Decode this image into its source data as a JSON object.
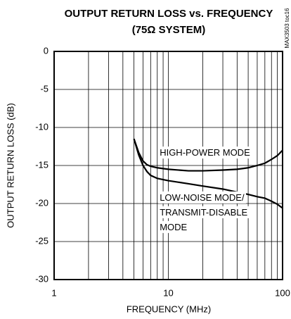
{
  "chart_data": {
    "type": "line",
    "title": [
      "OUTPUT RETURN LOSS vs. FREQUENCY",
      "(75Ω SYSTEM)"
    ],
    "side_label": "MAX3503 toc16",
    "xlabel": "FREQUENCY (MHz)",
    "ylabel": "OUTPUT RETURN LOSS (dB)",
    "xscale": "log",
    "xlim": [
      1,
      100
    ],
    "xticks": [
      1,
      10,
      100
    ],
    "ylim": [
      -30,
      0
    ],
    "yticks": [
      -30,
      -25,
      -20,
      -15,
      -10,
      -5,
      0
    ],
    "grid": true,
    "x": [
      5,
      5.5,
      6,
      6.5,
      7,
      8,
      10,
      15,
      20,
      30,
      40,
      50,
      60,
      70,
      80,
      90,
      100
    ],
    "series": [
      {
        "color": "#000000",
        "values": [
          -11.5,
          -13.3,
          -14.4,
          -14.9,
          -15.1,
          -15.3,
          -15.5,
          -15.7,
          -15.7,
          -15.6,
          -15.5,
          -15.3,
          -15.0,
          -14.7,
          -14.2,
          -13.7,
          -13.0
        ]
      },
      {
        "color": "#000000",
        "values": [
          -11.5,
          -13.6,
          -15.0,
          -15.8,
          -16.3,
          -16.7,
          -17.0,
          -17.4,
          -17.7,
          -18.1,
          -18.5,
          -18.8,
          -19.1,
          -19.3,
          -19.7,
          -20.1,
          -20.6
        ]
      }
    ],
    "annotations": [
      {
        "lines": [
          "HIGH-POWER MODE"
        ],
        "x": 8.4,
        "y": -13.4
      },
      {
        "lines": [
          "LOW-NOISE MODE/",
          "TRANSMIT-DISABLE",
          "MODE"
        ],
        "x": 8.4,
        "y": -19.3
      }
    ]
  }
}
